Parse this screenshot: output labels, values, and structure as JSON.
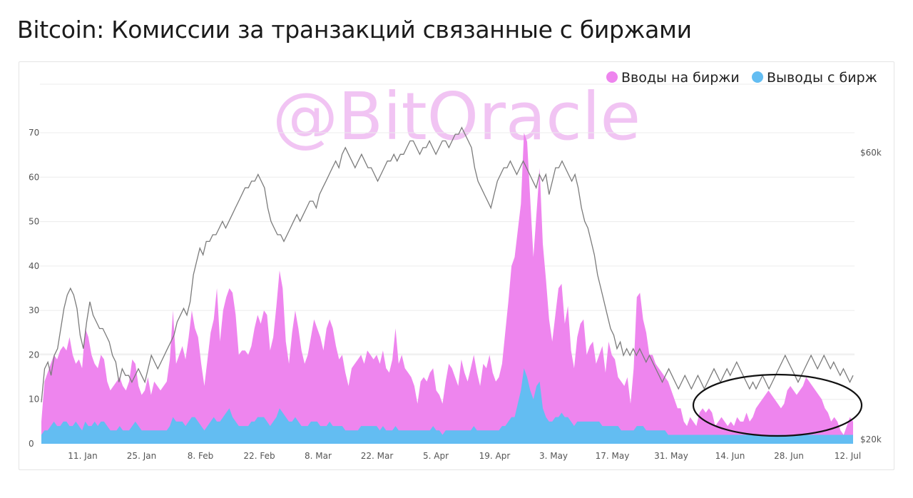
{
  "title": "Bitcoin: Комиссии за транзакций связанные с биржами",
  "watermark": "@BitOracle",
  "colors": {
    "inflows": "#ee85ee",
    "outflows": "#63bdf2",
    "price": "#7b7b7b",
    "grid": "#ececec"
  },
  "chart_data": {
    "type": "area",
    "title": "Bitcoin: Комиссии за транзакций связанные с биржами",
    "xlabel": "",
    "ylabel": "",
    "x_ticks": [
      "11. Jan",
      "25. Jan",
      "8. Feb",
      "22. Feb",
      "8. Mar",
      "22. Mar",
      "5. Apr",
      "19. Apr",
      "3. May",
      "17. May",
      "31. May",
      "14. Jun",
      "28. Jun",
      "12. Jul"
    ],
    "y_ticks": [
      "0",
      "10",
      "20",
      "30",
      "40",
      "50",
      "60",
      "70"
    ],
    "y_right_ticks": [
      "$20k",
      "$60k"
    ],
    "ylim": [
      0,
      70
    ],
    "y_right_lim": [
      "$20k",
      "$60k"
    ],
    "grid": true,
    "legend_position": "top-right",
    "series": [
      {
        "name": "Вводы на биржи",
        "type": "area",
        "values": [
          5,
          14,
          16,
          18,
          20,
          19,
          21,
          22,
          21,
          24,
          20,
          18,
          19,
          17,
          26,
          24,
          20,
          18,
          17,
          20,
          19,
          14,
          12,
          13,
          14,
          15,
          13,
          12,
          14,
          19,
          18,
          13,
          11,
          12,
          15,
          11,
          14,
          13,
          12,
          13,
          14,
          19,
          30,
          18,
          20,
          22,
          19,
          24,
          30,
          26,
          24,
          18,
          13,
          19,
          25,
          28,
          35,
          23,
          30,
          33,
          35,
          34,
          29,
          20,
          21,
          21,
          20,
          22,
          26,
          29,
          27,
          30,
          29,
          21,
          24,
          31,
          39,
          35,
          23,
          18,
          25,
          30,
          26,
          21,
          18,
          20,
          24,
          28,
          26,
          24,
          21,
          26,
          28,
          26,
          22,
          19,
          20,
          16,
          13,
          17,
          18,
          19,
          20,
          18,
          21,
          20,
          19,
          20,
          18,
          21,
          17,
          16,
          19,
          26,
          18,
          20,
          17,
          16,
          15,
          13,
          9,
          14,
          15,
          14,
          16,
          17,
          12,
          11,
          9,
          14,
          18,
          17,
          15,
          13,
          19,
          16,
          14,
          17,
          20,
          16,
          13,
          18,
          17,
          20,
          16,
          14,
          15,
          18,
          25,
          32,
          40,
          42,
          48,
          54,
          70,
          68,
          55,
          42,
          52,
          62,
          45,
          37,
          28,
          23,
          29,
          35,
          36,
          27,
          31,
          21,
          17,
          24,
          27,
          28,
          20,
          22,
          23,
          18,
          20,
          22,
          16,
          23,
          20,
          19,
          15,
          14,
          13,
          15,
          9,
          17,
          33,
          34,
          28,
          25,
          20,
          20,
          18,
          17,
          16,
          15,
          14,
          12,
          10,
          8,
          8,
          5,
          4,
          6,
          5,
          4,
          7,
          8,
          7,
          8,
          7,
          4,
          5,
          6,
          5,
          4,
          5,
          4,
          6,
          5,
          5,
          7,
          5,
          6,
          8,
          9,
          10,
          11,
          12,
          11,
          10,
          9,
          8,
          9,
          12,
          13,
          12,
          11,
          12,
          13,
          15,
          14,
          13,
          12,
          11,
          10,
          8,
          7,
          5,
          6,
          5,
          3,
          2,
          4,
          6,
          5
        ]
      },
      {
        "name": "Выводы с бирж",
        "type": "area",
        "values": [
          2,
          3,
          3,
          4,
          5,
          4,
          4,
          5,
          5,
          4,
          4,
          5,
          4,
          3,
          5,
          4,
          4,
          5,
          4,
          5,
          5,
          4,
          3,
          3,
          3,
          4,
          3,
          3,
          3,
          4,
          5,
          4,
          3,
          3,
          3,
          3,
          3,
          3,
          3,
          3,
          3,
          4,
          6,
          5,
          5,
          5,
          4,
          5,
          6,
          6,
          5,
          4,
          3,
          4,
          5,
          6,
          5,
          5,
          6,
          7,
          8,
          6,
          5,
          4,
          4,
          4,
          4,
          5,
          5,
          6,
          6,
          6,
          5,
          4,
          5,
          6,
          8,
          7,
          6,
          5,
          5,
          6,
          5,
          4,
          4,
          4,
          5,
          5,
          5,
          4,
          4,
          4,
          5,
          4,
          4,
          4,
          4,
          3,
          3,
          3,
          3,
          3,
          4,
          4,
          4,
          4,
          4,
          4,
          3,
          4,
          3,
          3,
          3,
          4,
          3,
          3,
          3,
          3,
          3,
          3,
          3,
          3,
          3,
          3,
          3,
          4,
          3,
          3,
          2,
          3,
          3,
          3,
          3,
          3,
          3,
          3,
          3,
          3,
          4,
          3,
          3,
          3,
          3,
          3,
          3,
          3,
          3,
          4,
          4,
          5,
          6,
          6,
          9,
          12,
          17,
          15,
          12,
          10,
          13,
          14,
          8,
          6,
          5,
          5,
          6,
          6,
          7,
          6,
          6,
          5,
          4,
          5,
          5,
          5,
          5,
          5,
          5,
          5,
          5,
          4,
          4,
          4,
          4,
          4,
          4,
          3,
          3,
          3,
          3,
          3,
          4,
          4,
          4,
          3,
          3,
          3,
          3,
          3,
          3,
          3,
          2,
          2,
          2,
          2,
          2,
          2,
          2,
          2,
          2,
          2,
          2,
          2,
          2,
          2,
          2,
          2,
          2,
          2,
          2,
          2,
          2,
          2,
          2,
          2,
          2,
          2,
          2,
          2,
          2,
          2,
          2,
          2,
          2,
          2,
          2,
          2,
          2,
          2,
          2,
          2,
          2,
          2,
          2,
          2,
          2,
          2,
          2,
          2,
          2,
          2,
          2,
          2,
          2,
          2,
          2,
          2,
          2,
          2,
          2,
          2
        ]
      },
      {
        "name": "",
        "type": "line",
        "axis": "right",
        "values": [
          23,
          28,
          29,
          27,
          30,
          31,
          34,
          37,
          39,
          40,
          39,
          37,
          33,
          31,
          35,
          38,
          36,
          35,
          34,
          34,
          33,
          32,
          30,
          29,
          26,
          28,
          27,
          27,
          26,
          27,
          28,
          27,
          26,
          28,
          30,
          29,
          28,
          29,
          30,
          31,
          32,
          33,
          35,
          36,
          37,
          36,
          38,
          42,
          44,
          46,
          45,
          47,
          47,
          48,
          48,
          49,
          50,
          49,
          50,
          51,
          52,
          53,
          54,
          55,
          55,
          56,
          56,
          57,
          56,
          55,
          52,
          50,
          49,
          48,
          48,
          47,
          48,
          49,
          50,
          51,
          50,
          51,
          52,
          53,
          53,
          52,
          54,
          55,
          56,
          57,
          58,
          59,
          58,
          60,
          61,
          60,
          59,
          58,
          59,
          60,
          59,
          58,
          58,
          57,
          56,
          57,
          58,
          59,
          59,
          60,
          59,
          60,
          60,
          61,
          62,
          62,
          61,
          60,
          61,
          61,
          62,
          61,
          60,
          61,
          62,
          62,
          61,
          62,
          63,
          63,
          64,
          63,
          62,
          61,
          58,
          56,
          55,
          54,
          53,
          52,
          54,
          56,
          57,
          58,
          58,
          59,
          58,
          57,
          58,
          59,
          58,
          57,
          56,
          55,
          57,
          56,
          57,
          54,
          56,
          58,
          58,
          59,
          58,
          57,
          56,
          57,
          55,
          52,
          50,
          49,
          47,
          45,
          42,
          40,
          38,
          36,
          34,
          33,
          31,
          32,
          30,
          31,
          30,
          31,
          30,
          31,
          30,
          29,
          30,
          29,
          28,
          27,
          26,
          27,
          28,
          27,
          26,
          25,
          26,
          27,
          26,
          25,
          26,
          27,
          26,
          25,
          26,
          27,
          28,
          27,
          26,
          27,
          28,
          27,
          28,
          29,
          28,
          27,
          26,
          25,
          26,
          25,
          26,
          27,
          26,
          25,
          26,
          27,
          28,
          29,
          30,
          29,
          28,
          27,
          26,
          27,
          28,
          29,
          30,
          29,
          28,
          29,
          30,
          29,
          28,
          29,
          28,
          27,
          28,
          27,
          26,
          27
        ]
      }
    ]
  }
}
